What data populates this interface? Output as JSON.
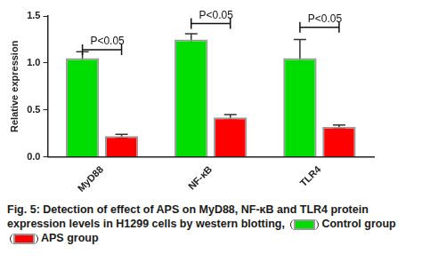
{
  "chart_data": {
    "type": "bar",
    "y_label": "Relative expression",
    "categories": [
      "MyD88",
      "NF-κB",
      "TLR4"
    ],
    "series": [
      {
        "name": "Control group",
        "color": "#00dd00",
        "values": [
          1.05,
          1.25,
          1.05
        ],
        "errors": [
          0.07,
          0.06,
          0.2
        ]
      },
      {
        "name": "APS group",
        "color": "#ff0000",
        "values": [
          0.22,
          0.42,
          0.32
        ],
        "errors": [
          0.02,
          0.03,
          0.02
        ]
      }
    ],
    "ylim": [
      0,
      1.5
    ],
    "yticks": [
      {
        "value": 0,
        "label": "0.0"
      },
      0.5,
      {
        "value": 1,
        "label": "1.0"
      },
      1.5
    ],
    "grid": false,
    "annotations": [
      {
        "text": "P<0.05",
        "category": "MyD88",
        "y": 1.14
      },
      {
        "text": "P<0.05",
        "category": "NF-κB",
        "y": 1.42
      },
      {
        "text": "P<0.05",
        "category": "TLR4",
        "y": 1.38
      }
    ],
    "caption": "Fig. 5: Detection of effect of APS on MyD88, NF-κB and TLR4 protein expression levels in H1299 cells by western blotting,"
  }
}
